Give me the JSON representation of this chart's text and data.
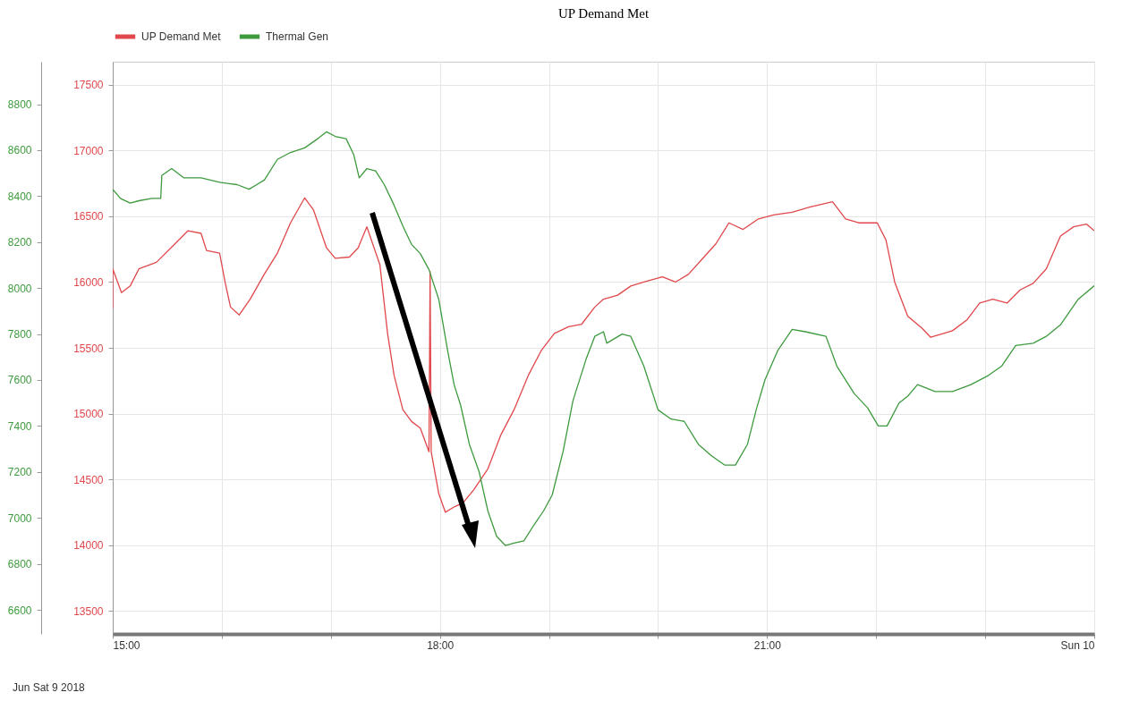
{
  "chart_data": {
    "type": "line",
    "title": "UP Demand Met",
    "annotations": [
      "Jun Sat 9 2018"
    ],
    "xlim": [
      15,
      24
    ],
    "xticks": [
      {
        "value": 15,
        "label": "15:00"
      },
      {
        "value": 16,
        "label": null
      },
      {
        "value": 17,
        "label": null
      },
      {
        "value": 18,
        "label": "18:00"
      },
      {
        "value": 19,
        "label": null
      },
      {
        "value": 20,
        "label": null
      },
      {
        "value": 21,
        "label": "21:00"
      },
      {
        "value": 22,
        "label": null
      },
      {
        "value": 23,
        "label": null
      },
      {
        "value": 24,
        "label": "Sun 10"
      }
    ],
    "ylim": [
      13325,
      17675
    ],
    "yticks": [
      13500,
      14000,
      14500,
      15000,
      15500,
      16000,
      16500,
      17000,
      17500
    ],
    "y2lim": [
      6495,
      8985
    ],
    "y2ticks": [
      6600,
      6800,
      7000,
      7200,
      7400,
      7600,
      7800,
      8000,
      8200,
      8400,
      8600,
      8800
    ],
    "grid": true,
    "legend": "top left",
    "series": [
      {
        "name": "UP Demand Met",
        "color": "#e0484c",
        "x": [
          15,
          15,
          15.08,
          15.16,
          15.24,
          15.4,
          15.57,
          15.69,
          15.81,
          15.86,
          15.98,
          16.03,
          16.08,
          16.16,
          16.26,
          16.39,
          16.51,
          16.63,
          16.76,
          16.84,
          16.96,
          17.04,
          17.17,
          17.25,
          17.33,
          17.45,
          17.52,
          17.58,
          17.66,
          17.74,
          17.82,
          17.9,
          17.91,
          17.92,
          17.99,
          18.05,
          18.13,
          18.21,
          18.31,
          18.44,
          18.56,
          18.68,
          18.81,
          18.93,
          19.05,
          19.18,
          19.3,
          19.42,
          19.5,
          19.63,
          19.75,
          19.87,
          20.04,
          20.16,
          20.28,
          20.41,
          20.53,
          20.65,
          20.78,
          20.92,
          21.06,
          21.23,
          21.39,
          21.6,
          21.72,
          21.84,
          22.01,
          22.09,
          22.17,
          22.29,
          22.42,
          22.5,
          22.62,
          22.7,
          22.83,
          22.95,
          23.07,
          23.2,
          23.32,
          23.44,
          23.56,
          23.69,
          23.81,
          23.93,
          24
        ],
        "values": [
          15800,
          16100,
          15920,
          15970,
          16100,
          16150,
          16290,
          16390,
          16370,
          16240,
          16220,
          16000,
          15810,
          15750,
          15870,
          16060,
          16220,
          16450,
          16640,
          16550,
          16260,
          16180,
          16190,
          16260,
          16420,
          16130,
          15610,
          15290,
          15030,
          14940,
          14890,
          14710,
          16080,
          14710,
          14390,
          14250,
          14290,
          14320,
          14420,
          14580,
          14840,
          15030,
          15290,
          15480,
          15610,
          15660,
          15680,
          15810,
          15870,
          15900,
          15970,
          16000,
          16040,
          16000,
          16060,
          16180,
          16290,
          16450,
          16400,
          16480,
          16510,
          16530,
          16570,
          16610,
          16480,
          16450,
          16450,
          16320,
          16000,
          15740,
          15650,
          15580,
          15610,
          15630,
          15710,
          15840,
          15870,
          15840,
          15940,
          15990,
          16100,
          16350,
          16420,
          16440,
          16390
        ]
      },
      {
        "name": "Thermal Gen",
        "color": "#3e9a3e",
        "axis": "y2",
        "x": [
          15,
          15.07,
          15.16,
          15.24,
          15.36,
          15.44,
          15.45,
          15.54,
          15.65,
          15.81,
          15.98,
          16.14,
          16.25,
          16.32,
          16.39,
          16.51,
          16.63,
          16.76,
          16.88,
          16.96,
          17.04,
          17.14,
          17.21,
          17.26,
          17.33,
          17.41,
          17.49,
          17.58,
          17.66,
          17.74,
          17.82,
          17.9,
          17.99,
          18.07,
          18.13,
          18.19,
          18.27,
          18.36,
          18.44,
          18.52,
          18.6,
          18.68,
          18.77,
          18.85,
          18.95,
          19.03,
          19.13,
          19.22,
          19.34,
          19.42,
          19.5,
          19.53,
          19.67,
          19.75,
          19.87,
          20,
          20.12,
          20.24,
          20.37,
          20.49,
          20.61,
          20.71,
          20.82,
          20.9,
          20.98,
          21.1,
          21.23,
          21.35,
          21.54,
          21.64,
          21.8,
          21.92,
          22.02,
          22.1,
          22.21,
          22.29,
          22.38,
          22.54,
          22.7,
          22.87,
          23.03,
          23.15,
          23.28,
          23.44,
          23.56,
          23.69,
          23.85,
          24
        ],
        "values": [
          8430,
          8390,
          8370,
          8380,
          8390,
          8390,
          8490,
          8520,
          8480,
          8480,
          8460,
          8450,
          8430,
          8450,
          8470,
          8560,
          8590,
          8610,
          8650,
          8680,
          8660,
          8650,
          8580,
          8480,
          8520,
          8510,
          8450,
          8360,
          8270,
          8190,
          8150,
          8080,
          7950,
          7730,
          7580,
          7490,
          7320,
          7200,
          7030,
          6920,
          6880,
          6890,
          6900,
          6960,
          7030,
          7100,
          7290,
          7510,
          7690,
          7790,
          7810,
          7760,
          7800,
          7790,
          7660,
          7470,
          7430,
          7420,
          7320,
          7270,
          7230,
          7230,
          7320,
          7470,
          7600,
          7730,
          7820,
          7810,
          7790,
          7660,
          7540,
          7480,
          7400,
          7400,
          7500,
          7530,
          7580,
          7550,
          7550,
          7580,
          7620,
          7660,
          7750,
          7760,
          7790,
          7840,
          7950,
          8010
        ]
      }
    ]
  }
}
